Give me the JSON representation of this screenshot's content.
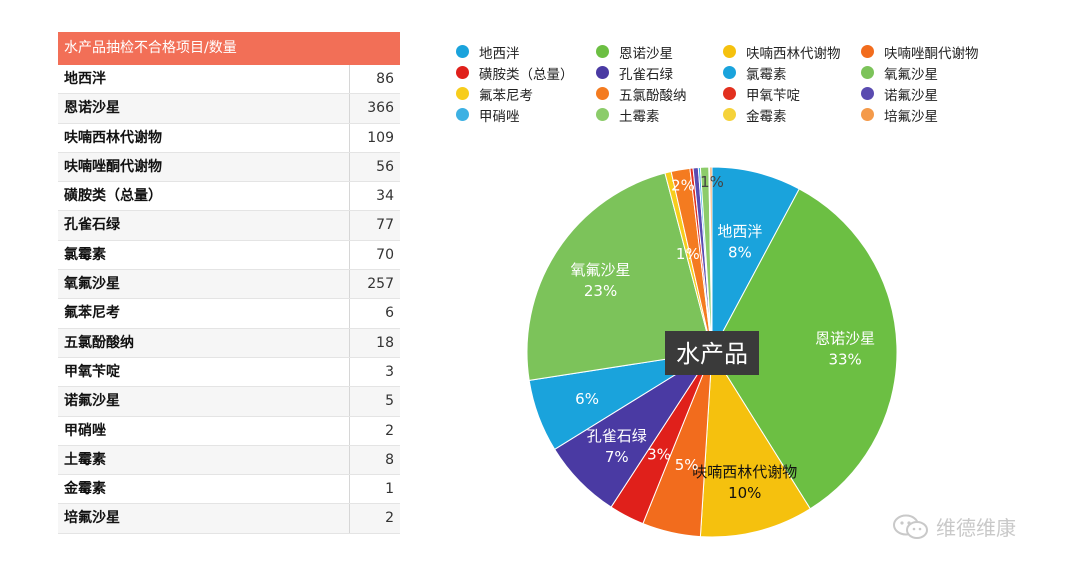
{
  "table": {
    "header": "水产品抽检不合格项目/数量",
    "rows": [
      {
        "name": "地西泮",
        "count": "86"
      },
      {
        "name": "恩诺沙星",
        "count": "366"
      },
      {
        "name": "呋喃西林代谢物",
        "count": "109"
      },
      {
        "name": "呋喃唑酮代谢物",
        "count": "56"
      },
      {
        "name": "磺胺类（总量）",
        "count": "34"
      },
      {
        "name": "孔雀石绿",
        "count": "77"
      },
      {
        "name": "氯霉素",
        "count": "70"
      },
      {
        "name": "氧氟沙星",
        "count": "257"
      },
      {
        "name": "氟苯尼考",
        "count": "6"
      },
      {
        "name": "五氯酚酸纳",
        "count": "18"
      },
      {
        "name": "甲氧苄啶",
        "count": "3"
      },
      {
        "name": "诺氟沙星",
        "count": "5"
      },
      {
        "name": "甲硝唑",
        "count": "2"
      },
      {
        "name": "土霉素",
        "count": "8"
      },
      {
        "name": "金霉素",
        "count": "1"
      },
      {
        "name": "培氟沙星",
        "count": "2"
      }
    ]
  },
  "chart_data": {
    "type": "pie",
    "center_label": "水产品",
    "categories": [
      "地西泮",
      "恩诺沙星",
      "呋喃西林代谢物",
      "呋喃唑酮代谢物",
      "磺胺类（总量）",
      "孔雀石绿",
      "氯霉素",
      "氧氟沙星",
      "氟苯尼考",
      "五氯酚酸纳",
      "甲氧苄啶",
      "诺氟沙星",
      "甲硝唑",
      "土霉素",
      "金霉素",
      "培氟沙星"
    ],
    "values": [
      86,
      366,
      109,
      56,
      34,
      77,
      70,
      257,
      6,
      18,
      3,
      5,
      2,
      8,
      1,
      2
    ],
    "colors": [
      "#1aa3dc",
      "#6cbf43",
      "#f5c10e",
      "#f26c1d",
      "#e0201b",
      "#4a3aa3",
      "#1aa3dc",
      "#7cc35a",
      "#f7cd1c",
      "#f47b20",
      "#e2301f",
      "#5a4bb0",
      "#3db1e3",
      "#8ccc6a",
      "#f5d23a",
      "#f49a4a"
    ],
    "slice_labels": [
      {
        "name": "地西泮",
        "pct": "8%"
      },
      {
        "name": "恩诺沙星",
        "pct": "33%"
      },
      {
        "name": "呋喃西林代谢物",
        "pct": "10%"
      },
      {
        "name": "",
        "pct": "5%"
      },
      {
        "name": "",
        "pct": "3%"
      },
      {
        "name": "孔雀石绿",
        "pct": "7%"
      },
      {
        "name": "",
        "pct": "6%"
      },
      {
        "name": "氧氟沙星",
        "pct": "23%"
      },
      {
        "name": "",
        "pct": "1%"
      },
      {
        "name": "",
        "pct": "2%"
      },
      {
        "name": "",
        "pct": ""
      },
      {
        "name": "",
        "pct": ""
      },
      {
        "name": "",
        "pct": ""
      },
      {
        "name": "",
        "pct": "1%"
      },
      {
        "name": "",
        "pct": ""
      },
      {
        "name": "",
        "pct": ""
      }
    ],
    "legend_placement": "top"
  },
  "watermark": "维德维康"
}
